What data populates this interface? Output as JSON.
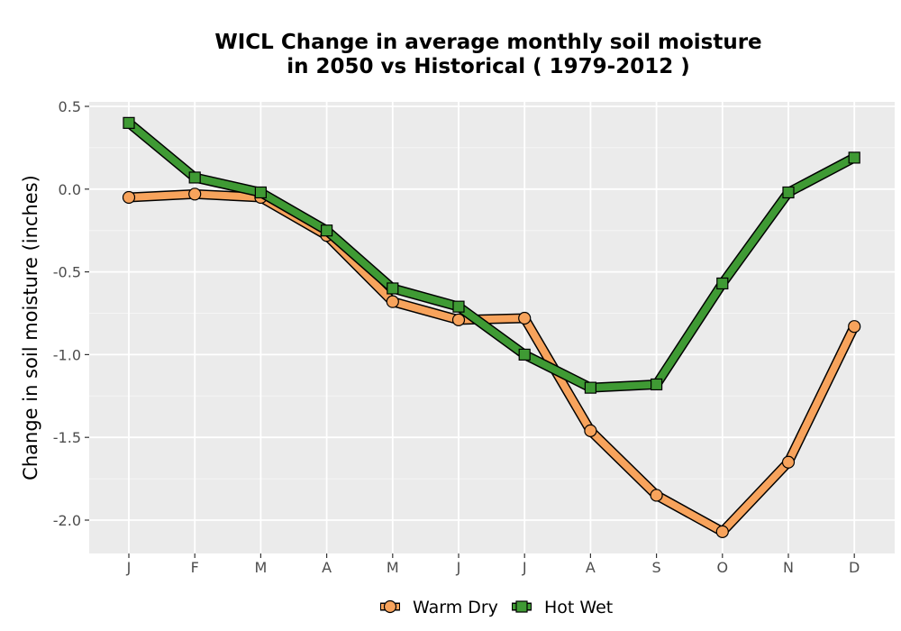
{
  "chart_data": {
    "type": "line",
    "title_lines": [
      "WICL  Change in average monthly soil moisture",
      "in 2050 vs Historical ( 1979-2012 )"
    ],
    "xlabel": "",
    "ylabel": "Change in soil moisture (inches)",
    "categories": [
      "J",
      "F",
      "M",
      "A",
      "M",
      "J",
      "J",
      "A",
      "S",
      "O",
      "N",
      "D"
    ],
    "ylim": [
      -2.18,
      0.5
    ],
    "yticks": [
      0.5,
      0.0,
      -0.5,
      -1.0,
      -1.5,
      -2.0
    ],
    "ytick_labels": [
      "0.5",
      "0.0",
      "-0.5",
      "-1.0",
      "-1.5",
      "-2.0"
    ],
    "grid": true,
    "legend_position": "bottom",
    "series": [
      {
        "name": "Warm Dry",
        "color": "#f7a35c",
        "marker": "circle",
        "values": [
          -0.05,
          -0.03,
          -0.05,
          -0.28,
          -0.68,
          -0.79,
          -0.78,
          -1.46,
          -1.85,
          -2.07,
          -1.65,
          -0.83
        ]
      },
      {
        "name": "Hot Wet",
        "color": "#3f9a34",
        "marker": "square",
        "values": [
          0.4,
          0.07,
          -0.02,
          -0.25,
          -0.6,
          -0.71,
          -1.0,
          -1.2,
          -1.18,
          -0.57,
          -0.02,
          0.19
        ]
      }
    ]
  }
}
